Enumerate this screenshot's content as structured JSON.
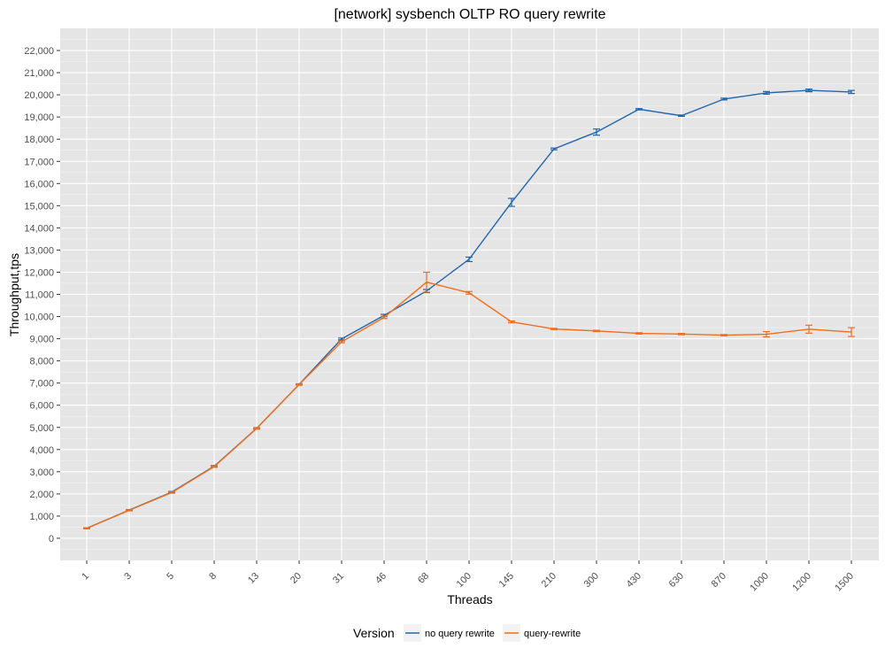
{
  "chart_data": {
    "type": "line",
    "title": "[network] sysbench OLTP RO query rewrite",
    "xlabel": "Threads",
    "ylabel": "Throughput,tps",
    "categories": [
      "1",
      "3",
      "5",
      "8",
      "13",
      "20",
      "31",
      "46",
      "68",
      "100",
      "145",
      "210",
      "300",
      "430",
      "630",
      "870",
      "1000",
      "1200",
      "1500"
    ],
    "y_ticks": [
      "0",
      "1,000",
      "2,000",
      "3,000",
      "4,000",
      "5,000",
      "6,000",
      "7,000",
      "8,000",
      "9,000",
      "10,000",
      "11,000",
      "12,000",
      "13,000",
      "14,000",
      "15,000",
      "16,000",
      "17,000",
      "18,000",
      "19,000",
      "20,000",
      "21,000",
      "22,000"
    ],
    "ylim": [
      -1000,
      23000
    ],
    "grid": true,
    "legend": {
      "title": "Version",
      "position": "bottom"
    },
    "series": [
      {
        "name": "no query rewrite",
        "color": "#2166ac",
        "values": [
          450,
          1270,
          2080,
          3250,
          4960,
          6940,
          8990,
          10050,
          11150,
          12580,
          15150,
          17560,
          18320,
          19350,
          19060,
          19810,
          20090,
          20200,
          20130
        ],
        "err": [
          20,
          25,
          30,
          30,
          30,
          30,
          40,
          50,
          70,
          100,
          180,
          40,
          140,
          30,
          30,
          40,
          60,
          60,
          70
        ]
      },
      {
        "name": "query-rewrite",
        "color": "#f46d1a",
        "values": [
          450,
          1260,
          2060,
          3230,
          4950,
          6930,
          8860,
          9960,
          11550,
          11070,
          9760,
          9440,
          9350,
          9240,
          9210,
          9160,
          9200,
          9430,
          9300
        ],
        "err": [
          20,
          25,
          30,
          30,
          30,
          30,
          40,
          50,
          450,
          60,
          40,
          30,
          30,
          30,
          30,
          30,
          120,
          180,
          200
        ]
      }
    ]
  }
}
